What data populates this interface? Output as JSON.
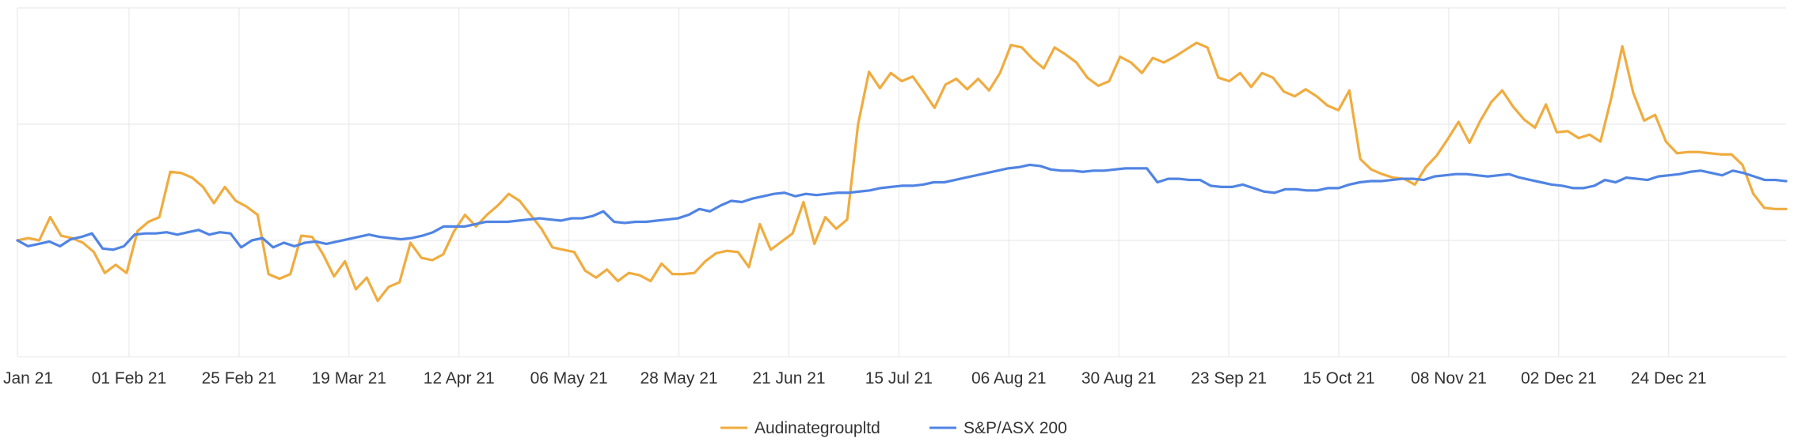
{
  "chart_data": {
    "type": "line",
    "x_tick_labels": [
      "Jan 21",
      "01 Feb 21",
      "25 Feb 21",
      "19 Mar 21",
      "12 Apr 21",
      "06 May 21",
      "28 May 21",
      "21 Jun 21",
      "15 Jul 21",
      "06 Aug 21",
      "30 Aug 21",
      "23 Sep 21",
      "15 Oct 21",
      "08 Nov 21",
      "02 Dec 21",
      "24 Dec 21"
    ],
    "y_axis_labels_shown": false,
    "ylim": [
      -100,
      200
    ],
    "grid": true,
    "legend_position": "bottom-center",
    "series": [
      {
        "name": "Audinategroupltd",
        "color": "#F0AC3F",
        "values": [
          0,
          2,
          0,
          20,
          4,
          2,
          -2,
          -10,
          -28,
          -21,
          -28,
          8,
          16,
          20,
          59,
          58,
          54,
          46,
          32,
          46,
          34,
          29,
          22,
          -29,
          -33,
          -29,
          4,
          3,
          -12,
          -31,
          -18,
          -42,
          -32,
          -52,
          -40,
          -36,
          -2,
          -15,
          -17,
          -12,
          8,
          22,
          12,
          22,
          30,
          40,
          34,
          22,
          10,
          -6,
          -8,
          -10,
          -26,
          -32,
          -25,
          -35,
          -28,
          -30,
          -35,
          -20,
          -29,
          -29,
          -28,
          -18,
          -11,
          -9,
          -10,
          -23,
          14,
          -8,
          -1,
          6,
          33,
          -3,
          20,
          10,
          18,
          100,
          145,
          131,
          144,
          137,
          141,
          128,
          114,
          134,
          139,
          130,
          139,
          129,
          144,
          168,
          166,
          156,
          148,
          166,
          160,
          153,
          140,
          133,
          137,
          158,
          153,
          144,
          157,
          153,
          158,
          164,
          170,
          166,
          140,
          137,
          144,
          132,
          144,
          140,
          128,
          124,
          130,
          124,
          116,
          112,
          129,
          70,
          61,
          57,
          54,
          53,
          48,
          63,
          73,
          87,
          102,
          84,
          103,
          119,
          129,
          115,
          104,
          97,
          117,
          93,
          94,
          88,
          91,
          85,
          123,
          167,
          127,
          103,
          108,
          85,
          75,
          76,
          76,
          75,
          74,
          74,
          65,
          40,
          28,
          27,
          27
        ],
        "series_x_fraction_note": "values evenly spaced across the plot width"
      },
      {
        "name": "S&P/ASX 200",
        "color": "#5084E3",
        "values": [
          0,
          -5,
          -3,
          -1,
          -5,
          1,
          3,
          6,
          -7,
          -8,
          -5,
          5,
          6,
          6,
          7,
          5,
          7,
          9,
          5,
          7,
          6,
          -6,
          0,
          2,
          -6,
          -2,
          -5,
          -2,
          -1,
          -3,
          -1,
          1,
          3,
          5,
          3,
          2,
          1,
          2,
          4,
          7,
          12,
          12,
          12,
          14,
          16,
          16,
          16,
          17,
          18,
          19,
          18,
          17,
          19,
          19,
          21,
          25,
          16,
          15,
          16,
          16,
          17,
          18,
          19,
          22,
          27,
          25,
          30,
          34,
          33,
          36,
          38,
          40,
          41,
          38,
          40,
          39,
          40,
          41,
          41,
          42,
          43,
          45,
          46,
          47,
          47,
          48,
          50,
          50,
          52,
          54,
          56,
          58,
          60,
          62,
          63,
          65,
          64,
          61,
          60,
          60,
          59,
          60,
          60,
          61,
          62,
          62,
          62,
          50,
          53,
          53,
          52,
          52,
          47,
          46,
          46,
          48,
          45,
          42,
          41,
          44,
          44,
          43,
          43,
          45,
          45,
          48,
          50,
          51,
          51,
          52,
          53,
          53,
          52,
          55,
          56,
          57,
          57,
          56,
          55,
          56,
          57,
          54,
          52,
          50,
          48,
          47,
          45,
          45,
          47,
          52,
          50,
          54,
          53,
          52,
          55,
          56,
          57,
          59,
          60,
          58,
          56,
          60,
          58,
          55,
          52,
          52,
          51
        ],
        "series_x_fraction_note": "values evenly spaced across the plot width"
      }
    ]
  }
}
